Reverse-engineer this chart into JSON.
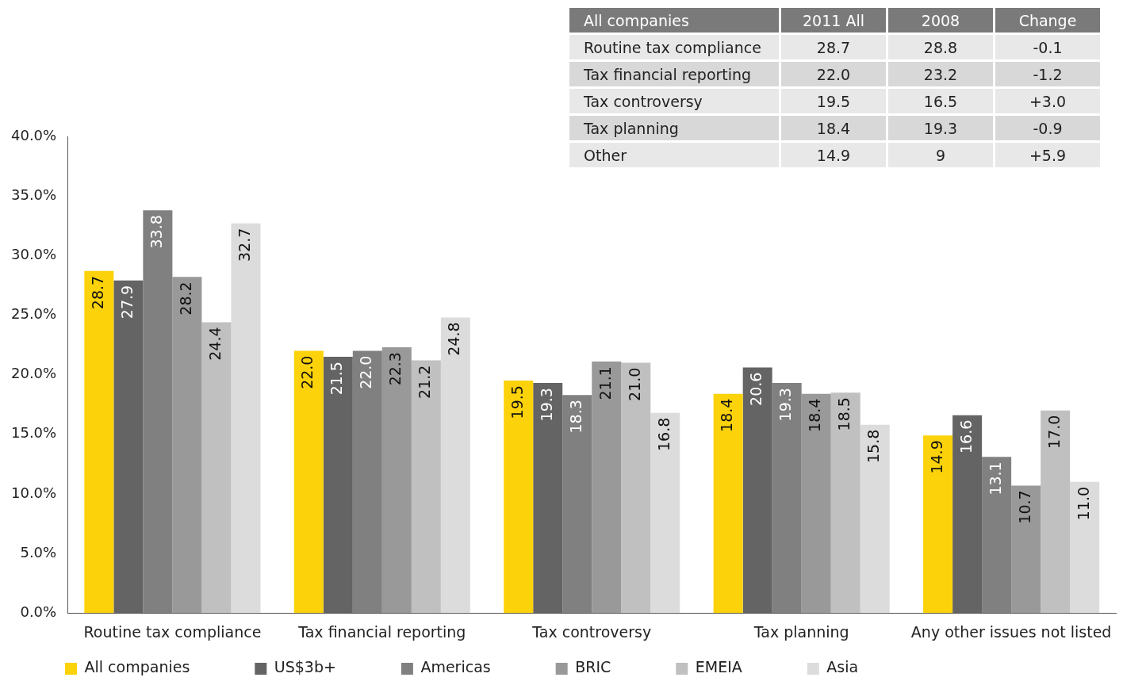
{
  "chart_data": {
    "type": "bar",
    "categories": [
      "Routine tax compliance",
      "Tax financial reporting",
      "Tax controversy",
      "Tax planning",
      "Any other issues not listed"
    ],
    "series": [
      {
        "name": "All companies",
        "color": "#fcd20a",
        "values": [
          28.7,
          22.0,
          19.5,
          18.4,
          14.9
        ]
      },
      {
        "name": "US$3b+",
        "color": "#646464",
        "values": [
          27.9,
          21.5,
          19.3,
          20.6,
          16.6
        ]
      },
      {
        "name": "Americas",
        "color": "#808080",
        "values": [
          33.8,
          22.0,
          18.3,
          19.3,
          13.1
        ]
      },
      {
        "name": "BRIC",
        "color": "#999999",
        "values": [
          28.2,
          22.3,
          21.1,
          18.4,
          10.7
        ]
      },
      {
        "name": "EMEIA",
        "color": "#c0c0c0",
        "values": [
          24.4,
          21.2,
          21.0,
          18.5,
          17.0
        ]
      },
      {
        "name": "Asia",
        "color": "#dcdcdc",
        "values": [
          32.7,
          24.8,
          16.8,
          15.8,
          11.0
        ]
      }
    ],
    "ylim": [
      0,
      40
    ],
    "yticks": [
      {
        "value": 0,
        "label": "0.0%"
      },
      {
        "value": 5,
        "label": "5.0%"
      },
      {
        "value": 10,
        "label": "10.0%"
      },
      {
        "value": 15,
        "label": "15.0%"
      },
      {
        "value": 20,
        "label": "20.0%"
      },
      {
        "value": 25,
        "label": "25.0%"
      },
      {
        "value": 30,
        "label": "30.0%"
      },
      {
        "value": 35,
        "label": "35.0%"
      },
      {
        "value": 40,
        "label": "40.0%"
      }
    ],
    "grid": false,
    "legend": "bottom",
    "value_labels": [
      [
        "28.7",
        "22.0",
        "19.5",
        "18.4",
        "14.9"
      ],
      [
        "27.9",
        "21.5",
        "19.3",
        "20.6",
        "16.6"
      ],
      [
        "33.8",
        "22.0",
        "18.3",
        "19.3",
        "13.1"
      ],
      [
        "28.2",
        "22.3",
        "21.1",
        "18.4",
        "10.7"
      ],
      [
        "24.4",
        "21.2",
        "21.0",
        "18.5",
        "17.0"
      ],
      [
        "32.7",
        "24.8",
        "16.8",
        "15.8",
        "11.0"
      ]
    ],
    "annotations": [
      "All companies",
      "2011 All",
      "2008",
      "Change",
      "Routine tax compliance",
      "28.7",
      "28.8",
      "-0.1",
      "Tax financial reporting",
      "22.0",
      "23.2",
      "-1.2",
      "Tax controversy",
      "19.5",
      "16.5",
      "+3.0",
      "Tax planning",
      "18.4",
      "19.3",
      "-0.9",
      "Other",
      "14.9",
      "9",
      "+5.9"
    ]
  }
}
